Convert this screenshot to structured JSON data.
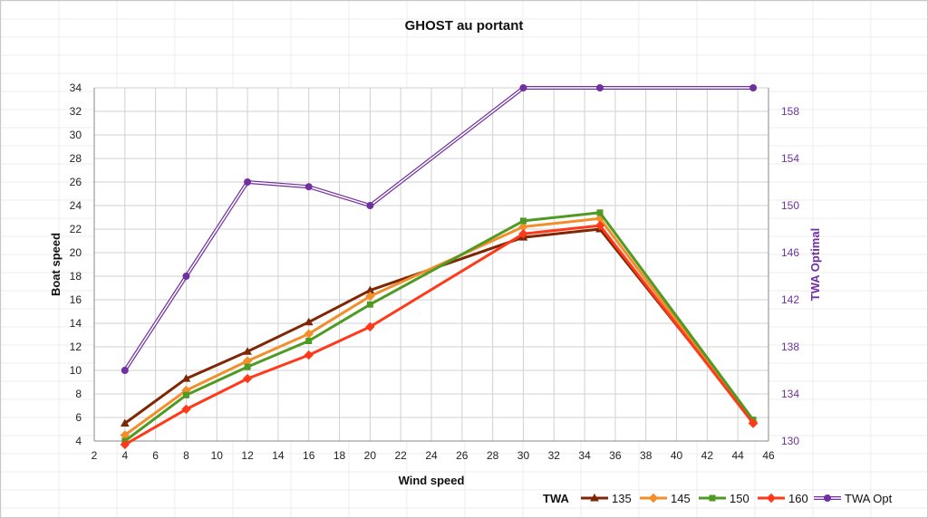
{
  "chart_data": {
    "type": "line",
    "title": "GHOST au portant",
    "xlabel": "Wind speed",
    "ylabel": "Boat speed",
    "y2label": "TWA Optimal",
    "xlim": [
      2,
      46
    ],
    "x_ticks": [
      2,
      4,
      6,
      8,
      10,
      12,
      14,
      16,
      18,
      20,
      22,
      24,
      26,
      28,
      30,
      32,
      34,
      36,
      38,
      40,
      42,
      44,
      46
    ],
    "ylim": [
      4,
      34
    ],
    "y_ticks": [
      4,
      6,
      8,
      10,
      12,
      14,
      16,
      18,
      20,
      22,
      24,
      26,
      28,
      30,
      32,
      34
    ],
    "y2lim": [
      130,
      160
    ],
    "y2_ticks": [
      130,
      134,
      138,
      142,
      146,
      150,
      154,
      158
    ],
    "grid": true,
    "legend_title": "TWA",
    "legend_position": "bottom-right",
    "x": [
      4,
      8,
      12,
      16,
      20,
      30,
      35,
      45
    ],
    "series": [
      {
        "name": "135",
        "color": "#7f2704",
        "marker": "triangle",
        "axis": "left",
        "values": [
          5.5,
          9.3,
          11.6,
          14.1,
          16.8,
          21.3,
          22.0,
          5.7
        ]
      },
      {
        "name": "145",
        "color": "#f28e2b",
        "marker": "diamond",
        "axis": "left",
        "values": [
          4.5,
          8.3,
          10.8,
          13.1,
          16.3,
          22.2,
          22.9,
          5.6
        ]
      },
      {
        "name": "150",
        "color": "#4f9a23",
        "marker": "square",
        "axis": "left",
        "values": [
          4.0,
          7.9,
          10.3,
          12.5,
          15.6,
          22.7,
          23.4,
          5.8
        ]
      },
      {
        "name": "160",
        "color": "#ff3a1a",
        "marker": "diamond",
        "axis": "left",
        "values": [
          3.7,
          6.7,
          9.3,
          11.3,
          13.7,
          21.6,
          22.3,
          5.5
        ]
      },
      {
        "name": "TWA Opt",
        "color": "#7030a0",
        "marker": "circle",
        "axis": "right",
        "double_line": true,
        "values": [
          136,
          144,
          152,
          151.6,
          150,
          160,
          160,
          160
        ]
      }
    ]
  }
}
